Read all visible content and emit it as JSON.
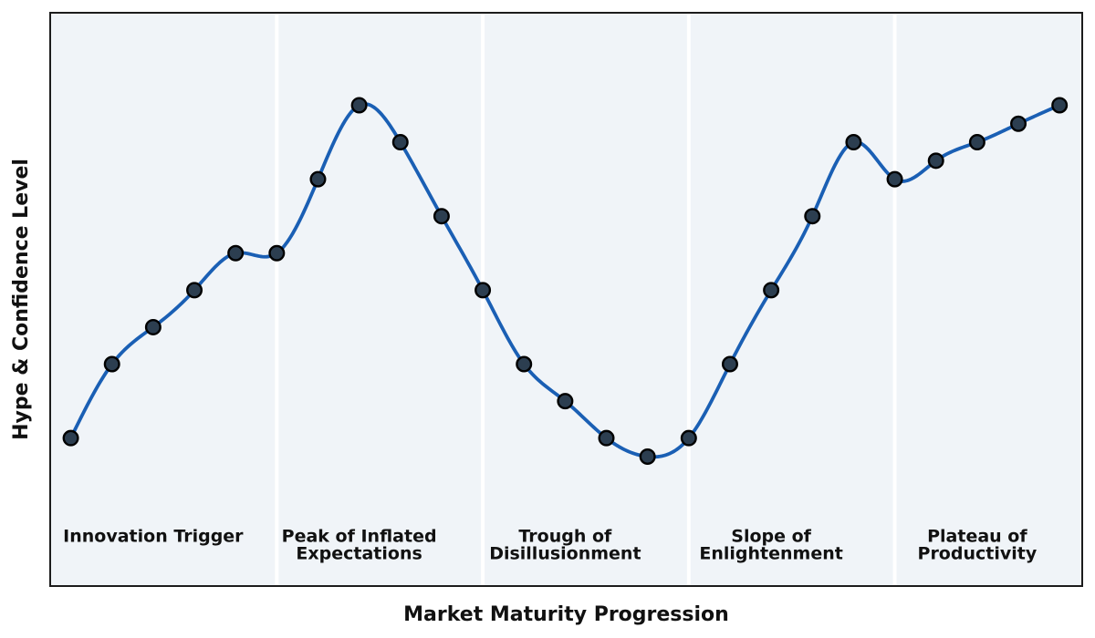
{
  "chart_data": {
    "type": "line",
    "title": "",
    "xlabel": "Market Maturity Progression",
    "ylabel": "Hype & Confidence Level",
    "x": [
      0,
      1,
      2,
      3,
      4,
      5,
      6,
      7,
      8,
      9,
      10,
      11,
      12,
      13,
      14,
      15,
      16,
      17,
      18,
      19,
      20,
      21,
      22,
      23,
      24
    ],
    "y": [
      5,
      25,
      35,
      45,
      55,
      55,
      75,
      95,
      85,
      65,
      45,
      25,
      15,
      5,
      0,
      5,
      25,
      45,
      65,
      85,
      75,
      80,
      85,
      90,
      95
    ],
    "xlim": [
      -0.5,
      24.55
    ],
    "ylim": [
      -35,
      120
    ],
    "grid": false,
    "legend": null,
    "ticks": "none",
    "curve": "smooth-cubic-spline",
    "phase_separators_x": [
      5,
      10,
      15,
      20
    ],
    "phase_label_y": -23,
    "phases": [
      {
        "label": "Innovation Trigger",
        "lines": [
          "Innovation Trigger"
        ],
        "center_x": 2
      },
      {
        "label": "Peak of Inflated Expectations",
        "lines": [
          "Peak of Inflated",
          "Expectations"
        ],
        "center_x": 7
      },
      {
        "label": "Trough of Disillusionment",
        "lines": [
          "Trough of",
          "Disillusionment"
        ],
        "center_x": 12
      },
      {
        "label": "Slope of Enlightenment",
        "lines": [
          "Slope of",
          "Enlightenment"
        ],
        "center_x": 17
      },
      {
        "label": "Plateau of Productivity",
        "lines": [
          "Plateau of",
          "Productivity"
        ],
        "center_x": 22
      }
    ],
    "colors": {
      "line": "#1a5fb4",
      "marker_face": "#2c3e50",
      "marker_edge": "#000000",
      "plot_background": "#f0f4f8",
      "phase_separator": "#ffffff",
      "frame": "#1c1c1c",
      "text": "#111111",
      "figure_background": "#ffffff"
    }
  }
}
